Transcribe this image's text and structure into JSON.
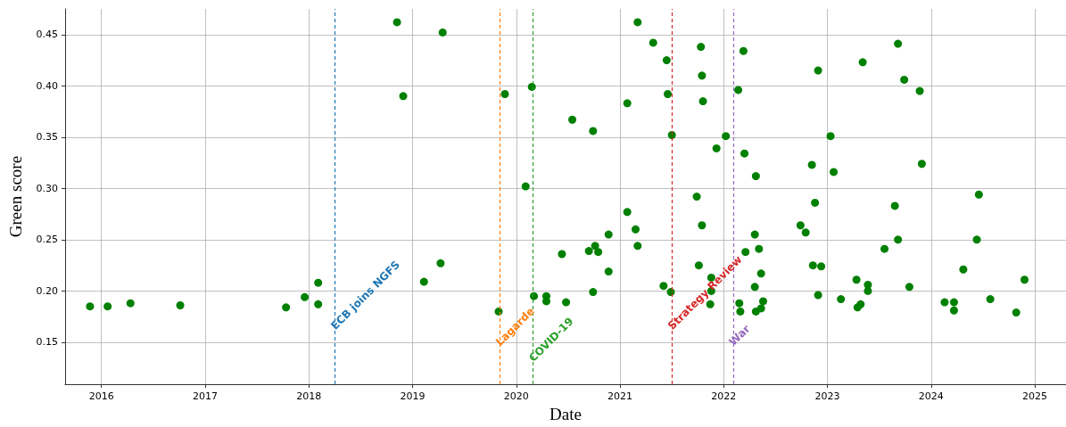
{
  "chart_data": {
    "type": "scatter",
    "xlabel": "Date",
    "ylabel": "Green score",
    "marker": "circle",
    "grid": true,
    "x": [
      2015.89,
      2016.06,
      2016.28,
      2016.76,
      2017.78,
      2017.96,
      2018.09,
      2018.09,
      2018.85,
      2018.91,
      2019.11,
      2019.27,
      2019.29,
      2019.83,
      2019.89,
      2020.09,
      2020.15,
      2020.17,
      2020.29,
      2020.29,
      2020.44,
      2020.48,
      2020.54,
      2020.7,
      2020.74,
      2020.74,
      2020.76,
      2020.79,
      2020.89,
      2020.89,
      2021.07,
      2021.07,
      2021.15,
      2021.17,
      2021.17,
      2021.32,
      2021.42,
      2021.45,
      2021.46,
      2021.49,
      2021.5,
      2021.74,
      2021.76,
      2021.78,
      2021.79,
      2021.79,
      2021.8,
      2021.87,
      2021.88,
      2021.88,
      2021.93,
      2022.02,
      2022.14,
      2022.15,
      2022.16,
      2022.19,
      2022.2,
      2022.21,
      2022.3,
      2022.3,
      2022.31,
      2022.31,
      2022.34,
      2022.36,
      2022.36,
      2022.38,
      2022.74,
      2022.79,
      2022.85,
      2022.86,
      2022.88,
      2022.91,
      2022.91,
      2022.94,
      2023.03,
      2023.06,
      2023.13,
      2023.28,
      2023.29,
      2023.32,
      2023.34,
      2023.39,
      2023.39,
      2023.55,
      2023.65,
      2023.68,
      2023.68,
      2023.74,
      2023.79,
      2023.89,
      2023.91,
      2024.13,
      2024.22,
      2024.22,
      2024.31,
      2024.44,
      2024.46,
      2024.57,
      2024.82,
      2024.9
    ],
    "series": [
      {
        "color": "#008000",
        "values": [
          0.185,
          0.185,
          0.188,
          0.186,
          0.184,
          0.194,
          0.208,
          0.187,
          0.462,
          0.39,
          0.209,
          0.227,
          0.452,
          0.18,
          0.392,
          0.302,
          0.399,
          0.195,
          0.195,
          0.19,
          0.236,
          0.189,
          0.367,
          0.239,
          0.356,
          0.199,
          0.244,
          0.238,
          0.219,
          0.255,
          0.383,
          0.277,
          0.26,
          0.244,
          0.462,
          0.442,
          0.205,
          0.425,
          0.392,
          0.199,
          0.352,
          0.292,
          0.225,
          0.438,
          0.264,
          0.41,
          0.385,
          0.187,
          0.213,
          0.2,
          0.339,
          0.351,
          0.396,
          0.188,
          0.18,
          0.434,
          0.334,
          0.238,
          0.255,
          0.204,
          0.312,
          0.18,
          0.241,
          0.217,
          0.183,
          0.19,
          0.264,
          0.257,
          0.323,
          0.225,
          0.286,
          0.415,
          0.196,
          0.224,
          0.351,
          0.316,
          0.192,
          0.211,
          0.184,
          0.187,
          0.423,
          0.206,
          0.2,
          0.241,
          0.283,
          0.441,
          0.25,
          0.406,
          0.204,
          0.395,
          0.324,
          0.189,
          0.189,
          0.181,
          0.221,
          0.25,
          0.294,
          0.192,
          0.179,
          0.211
        ]
      }
    ],
    "xlim": [
      2015.65,
      2025.3
    ],
    "xticks": [
      2016,
      2017,
      2018,
      2019,
      2020,
      2021,
      2022,
      2023,
      2024,
      2025
    ],
    "ylim": [
      0.109,
      0.475
    ],
    "yticks": [
      0.15,
      {
        "value": 0.2,
        "label": "0.20"
      },
      0.25,
      {
        "value": 0.3,
        "label": "0.30"
      },
      0.35,
      {
        "value": 0.4,
        "label": "0.40"
      },
      0.45
    ],
    "ref_lines": [
      {
        "axis": "x",
        "value": 2018.25,
        "label": "ECB joins NGFS",
        "color": "#1f77b4",
        "line_style": "dashed"
      },
      {
        "axis": "x",
        "value": 2019.84,
        "label": "Lagarde",
        "color": "#ff7f0e",
        "line_style": "dashed"
      },
      {
        "axis": "x",
        "value": 2020.16,
        "label": "COVID-19",
        "color": "#2ca02c",
        "line_style": "dashed"
      },
      {
        "axis": "x",
        "value": 2021.5,
        "label": "Strategy Review",
        "color": "#d62728",
        "line_style": "dashed"
      },
      {
        "axis": "x",
        "value": 2022.09,
        "label": "War",
        "color": "#9467bd",
        "line_style": "dashed"
      }
    ]
  }
}
